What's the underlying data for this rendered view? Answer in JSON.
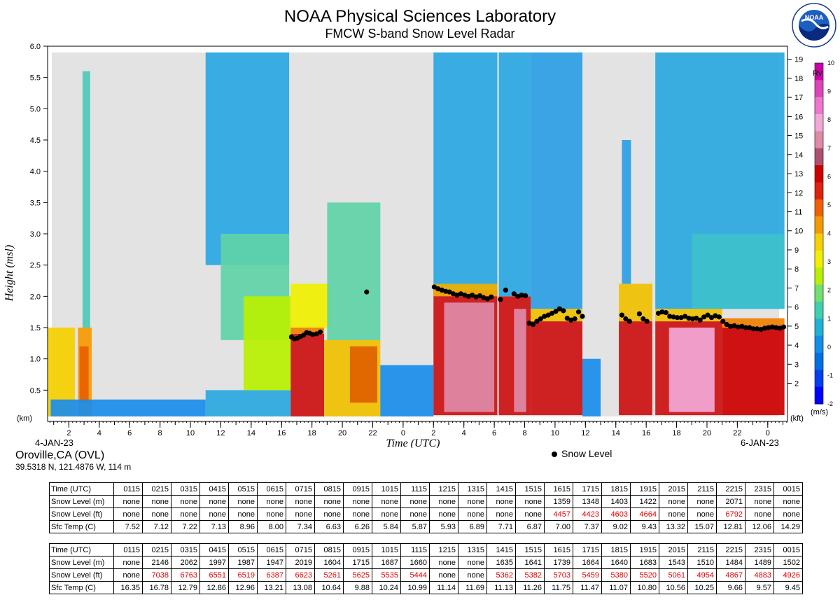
{
  "header": {
    "title": "NOAA Physical Sciences Laboratory",
    "subtitle": "FMCW S-band Snow Level Radar",
    "logo_text": "NOAA"
  },
  "chart_data": {
    "type": "heatmap",
    "title": "NOAA Physical Sciences Laboratory",
    "subtitle": "FMCW S-band Snow Level Radar",
    "xlabel": "Time (UTC)",
    "ylabel": "Height (msl)",
    "left_unit": "(km)",
    "right_unit": "(kft)",
    "colorbar_title": "Rv",
    "colorbar_unit": "(m/s)",
    "start_date": "4-JAN-23",
    "end_date": "6-JAN-23",
    "x_tick_labels": [
      "2",
      "4",
      "6",
      "8",
      "10",
      "12",
      "14",
      "16",
      "18",
      "20",
      "22",
      "0",
      "2",
      "4",
      "6",
      "8",
      "10",
      "12",
      "14",
      "16",
      "18",
      "20",
      "22",
      "0"
    ],
    "x_tick_hours": [
      2,
      4,
      6,
      8,
      10,
      12,
      14,
      16,
      18,
      20,
      22,
      24,
      26,
      28,
      30,
      32,
      34,
      36,
      38,
      40,
      42,
      44,
      46,
      48
    ],
    "xlim_hours": [
      0.6,
      49.3
    ],
    "ylim_km": [
      0,
      6.0
    ],
    "y_ticks_km": [
      "0.5",
      "1.0",
      "1.5",
      "2.0",
      "2.5",
      "3.0",
      "3.5",
      "4.0",
      "4.5",
      "5.0",
      "5.5",
      "6.0"
    ],
    "y_ticks_kft": [
      "2",
      "3",
      "4",
      "5",
      "6",
      "7",
      "8",
      "9",
      "10",
      "11",
      "12",
      "13",
      "14",
      "15",
      "16",
      "17",
      "18",
      "19"
    ],
    "colorbar_ticks": [
      "10",
      "9",
      "8",
      "7",
      "6",
      "5",
      "4",
      "3",
      "2",
      "1",
      "0",
      "-1",
      "-2"
    ],
    "colorbar_colors": [
      "#cc00aa",
      "#dd44bb",
      "#ee77cc",
      "#f4a8d8",
      "#e08aa8",
      "#b05070",
      "#cc0000",
      "#e02010",
      "#f06000",
      "#f49a00",
      "#f8d000",
      "#f0f000",
      "#b8f000",
      "#70e070",
      "#40d0b0",
      "#20b0d8",
      "#1090e8",
      "#0070e0",
      "#0040f0",
      "#0000ff"
    ],
    "snow_level_series": [
      {
        "name": "Snow Level",
        "points": [
          [
            16.65,
            1.35
          ],
          [
            16.85,
            1.32
          ],
          [
            17.05,
            1.33
          ],
          [
            17.25,
            1.36
          ],
          [
            17.45,
            1.38
          ],
          [
            17.65,
            1.42
          ],
          [
            17.85,
            1.41
          ],
          [
            18.05,
            1.39
          ],
          [
            18.3,
            1.4
          ],
          [
            18.55,
            1.43
          ],
          [
            21.6,
            2.07
          ],
          [
            26.05,
            2.15
          ],
          [
            26.3,
            2.12
          ],
          [
            26.55,
            2.1
          ],
          [
            26.8,
            2.08
          ],
          [
            27.05,
            2.07
          ],
          [
            27.3,
            2.04
          ],
          [
            27.55,
            2.02
          ],
          [
            27.8,
            2.04
          ],
          [
            28.05,
            2.02
          ],
          [
            28.3,
            2.0
          ],
          [
            28.55,
            2.02
          ],
          [
            28.8,
            1.99
          ],
          [
            29.05,
            2.01
          ],
          [
            29.3,
            1.98
          ],
          [
            29.55,
            1.96
          ],
          [
            29.8,
            1.99
          ],
          [
            30.4,
            1.95
          ],
          [
            30.75,
            2.1
          ],
          [
            31.3,
            2.04
          ],
          [
            31.55,
            2.0
          ],
          [
            31.8,
            2.02
          ],
          [
            32.05,
            2.01
          ],
          [
            32.3,
            1.57
          ],
          [
            32.55,
            1.55
          ],
          [
            32.8,
            1.6
          ],
          [
            33.05,
            1.64
          ],
          [
            33.3,
            1.68
          ],
          [
            33.55,
            1.7
          ],
          [
            33.8,
            1.73
          ],
          [
            34.05,
            1.76
          ],
          [
            34.3,
            1.8
          ],
          [
            34.55,
            1.77
          ],
          [
            34.8,
            1.65
          ],
          [
            35.05,
            1.62
          ],
          [
            35.3,
            1.64
          ],
          [
            35.55,
            1.75
          ],
          [
            35.8,
            1.68
          ],
          [
            38.4,
            1.7
          ],
          [
            38.65,
            1.64
          ],
          [
            38.9,
            1.6
          ],
          [
            39.55,
            1.72
          ],
          [
            39.8,
            1.64
          ],
          [
            40.05,
            1.6
          ],
          [
            40.8,
            1.73
          ],
          [
            41.05,
            1.75
          ],
          [
            41.3,
            1.74
          ],
          [
            41.55,
            1.68
          ],
          [
            41.8,
            1.67
          ],
          [
            42.05,
            1.66
          ],
          [
            42.3,
            1.66
          ],
          [
            42.55,
            1.68
          ],
          [
            42.8,
            1.65
          ],
          [
            43.05,
            1.64
          ],
          [
            43.3,
            1.65
          ],
          [
            43.55,
            1.62
          ],
          [
            43.8,
            1.67
          ],
          [
            44.05,
            1.7
          ],
          [
            44.3,
            1.66
          ],
          [
            44.55,
            1.69
          ],
          [
            44.8,
            1.67
          ],
          [
            45.05,
            1.6
          ],
          [
            45.3,
            1.55
          ],
          [
            45.55,
            1.52
          ],
          [
            45.8,
            1.53
          ],
          [
            46.05,
            1.51
          ],
          [
            46.3,
            1.52
          ],
          [
            46.55,
            1.5
          ],
          [
            46.8,
            1.5
          ],
          [
            47.05,
            1.48
          ],
          [
            47.3,
            1.48
          ],
          [
            47.55,
            1.47
          ],
          [
            47.8,
            1.49
          ],
          [
            48.05,
            1.5
          ],
          [
            48.3,
            1.51
          ],
          [
            48.55,
            1.5
          ],
          [
            48.8,
            1.49
          ],
          [
            49.05,
            1.51
          ]
        ]
      }
    ]
  },
  "station": {
    "name": "Oroville,CA (OVL)",
    "coords": "39.5318 N, 121.4876 W, 114 m"
  },
  "legend": {
    "label": "Snow Level"
  },
  "tables": [
    {
      "rows": [
        {
          "label": "Time (UTC)",
          "values": [
            "0115",
            "0215",
            "0315",
            "0415",
            "0515",
            "0615",
            "0715",
            "0815",
            "0915",
            "1015",
            "1115",
            "1215",
            "1315",
            "1415",
            "1515",
            "1615",
            "1715",
            "1815",
            "1915",
            "2015",
            "2115",
            "2215",
            "2315",
            "0015"
          ]
        },
        {
          "label": "Snow Level (m)",
          "values": [
            "none",
            "none",
            "none",
            "none",
            "none",
            "none",
            "none",
            "none",
            "none",
            "none",
            "none",
            "none",
            "none",
            "none",
            "none",
            "1359",
            "1348",
            "1403",
            "1422",
            "none",
            "none",
            "2071",
            "none",
            "none"
          ]
        },
        {
          "label": "Snow Level (ft)",
          "values": [
            "none",
            "none",
            "none",
            "none",
            "none",
            "none",
            "none",
            "none",
            "none",
            "none",
            "none",
            "none",
            "none",
            "none",
            "none",
            "4457",
            "4423",
            "4603",
            "4664",
            "none",
            "none",
            "6792",
            "none",
            "none"
          ],
          "highlight_color": "#e00000"
        },
        {
          "label": "Sfc Temp (C)",
          "values": [
            "7.52",
            "7.12",
            "7.22",
            "7.13",
            "8.96",
            "8.00",
            "7.34",
            "6.63",
            "6.26",
            "5.84",
            "5.87",
            "5.93",
            "6.89",
            "7.71",
            "6.87",
            "7.00",
            "7.37",
            "9.02",
            "9.43",
            "13.32",
            "15.07",
            "12.81",
            "12.06",
            "14.29"
          ]
        }
      ]
    },
    {
      "rows": [
        {
          "label": "Time (UTC)",
          "values": [
            "0115",
            "0215",
            "0315",
            "0415",
            "0515",
            "0615",
            "0715",
            "0815",
            "0915",
            "1015",
            "1115",
            "1215",
            "1315",
            "1415",
            "1515",
            "1615",
            "1715",
            "1815",
            "1915",
            "2015",
            "2115",
            "2215",
            "2315",
            "0015"
          ]
        },
        {
          "label": "Snow Level (m)",
          "values": [
            "none",
            "2146",
            "2062",
            "1997",
            "1987",
            "1947",
            "2019",
            "1604",
            "1715",
            "1687",
            "1660",
            "none",
            "none",
            "1635",
            "1641",
            "1739",
            "1664",
            "1640",
            "1683",
            "1543",
            "1510",
            "1484",
            "1489",
            "1502"
          ]
        },
        {
          "label": "Snow Level (ft)",
          "values": [
            "none",
            "7038",
            "6763",
            "6551",
            "6519",
            "6387",
            "6623",
            "5261",
            "5625",
            "5535",
            "5444",
            "none",
            "none",
            "5362",
            "5382",
            "5703",
            "5459",
            "5380",
            "5520",
            "5061",
            "4954",
            "4867",
            "4883",
            "4926"
          ],
          "highlight_color": "#e00000"
        },
        {
          "label": "Sfc Temp (C)",
          "values": [
            "16.35",
            "16.78",
            "12.79",
            "12.86",
            "12.96",
            "13.21",
            "13.08",
            "10.64",
            "9.88",
            "10.24",
            "10.99",
            "11.14",
            "11.69",
            "11.13",
            "11.26",
            "11.75",
            "11.47",
            "11.07",
            "10.80",
            "10.56",
            "10.25",
            "9.66",
            "9.57",
            "9.45"
          ]
        }
      ]
    }
  ]
}
